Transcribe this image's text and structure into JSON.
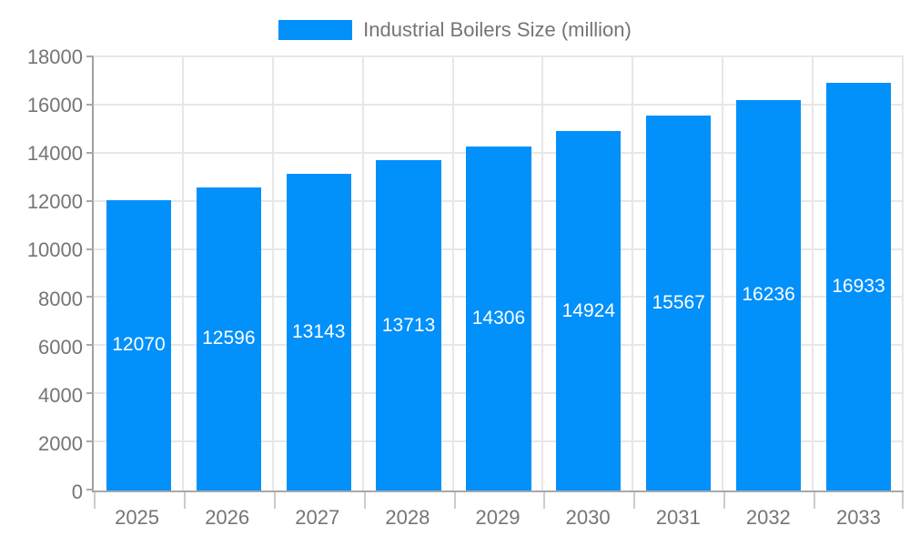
{
  "chart_data": {
    "type": "bar",
    "title": "",
    "legend": {
      "label": "Industrial Boilers Size (million)",
      "position": "top-center",
      "marker": "rect"
    },
    "categories": [
      "2025",
      "2026",
      "2027",
      "2028",
      "2029",
      "2030",
      "2031",
      "2032",
      "2033"
    ],
    "series": [
      {
        "name": "Industrial Boilers Size (million)",
        "values": [
          12070,
          12596,
          13143,
          13713,
          14306,
          14924,
          15567,
          16236,
          16933
        ]
      }
    ],
    "bar_value_labels": [
      "12070",
      "12596",
      "13143",
      "13713",
      "14306",
      "14924",
      "15567",
      "16236",
      "16933"
    ],
    "xlabel": "",
    "ylabel": "",
    "ylim": [
      0,
      18000
    ],
    "ytick_step": 2000,
    "yticks": [
      "0",
      "2000",
      "4000",
      "6000",
      "8000",
      "10000",
      "12000",
      "14000",
      "16000",
      "18000"
    ],
    "grid": true,
    "value_label_position": "inside-center",
    "colors": {
      "bar": "#0290FB",
      "axis_text": "#757575",
      "bar_label_text": "#FFFFFF",
      "gridline": "#E7E7E7",
      "axis_line": "#A8A8A8",
      "background": "#FFFFFF"
    }
  }
}
